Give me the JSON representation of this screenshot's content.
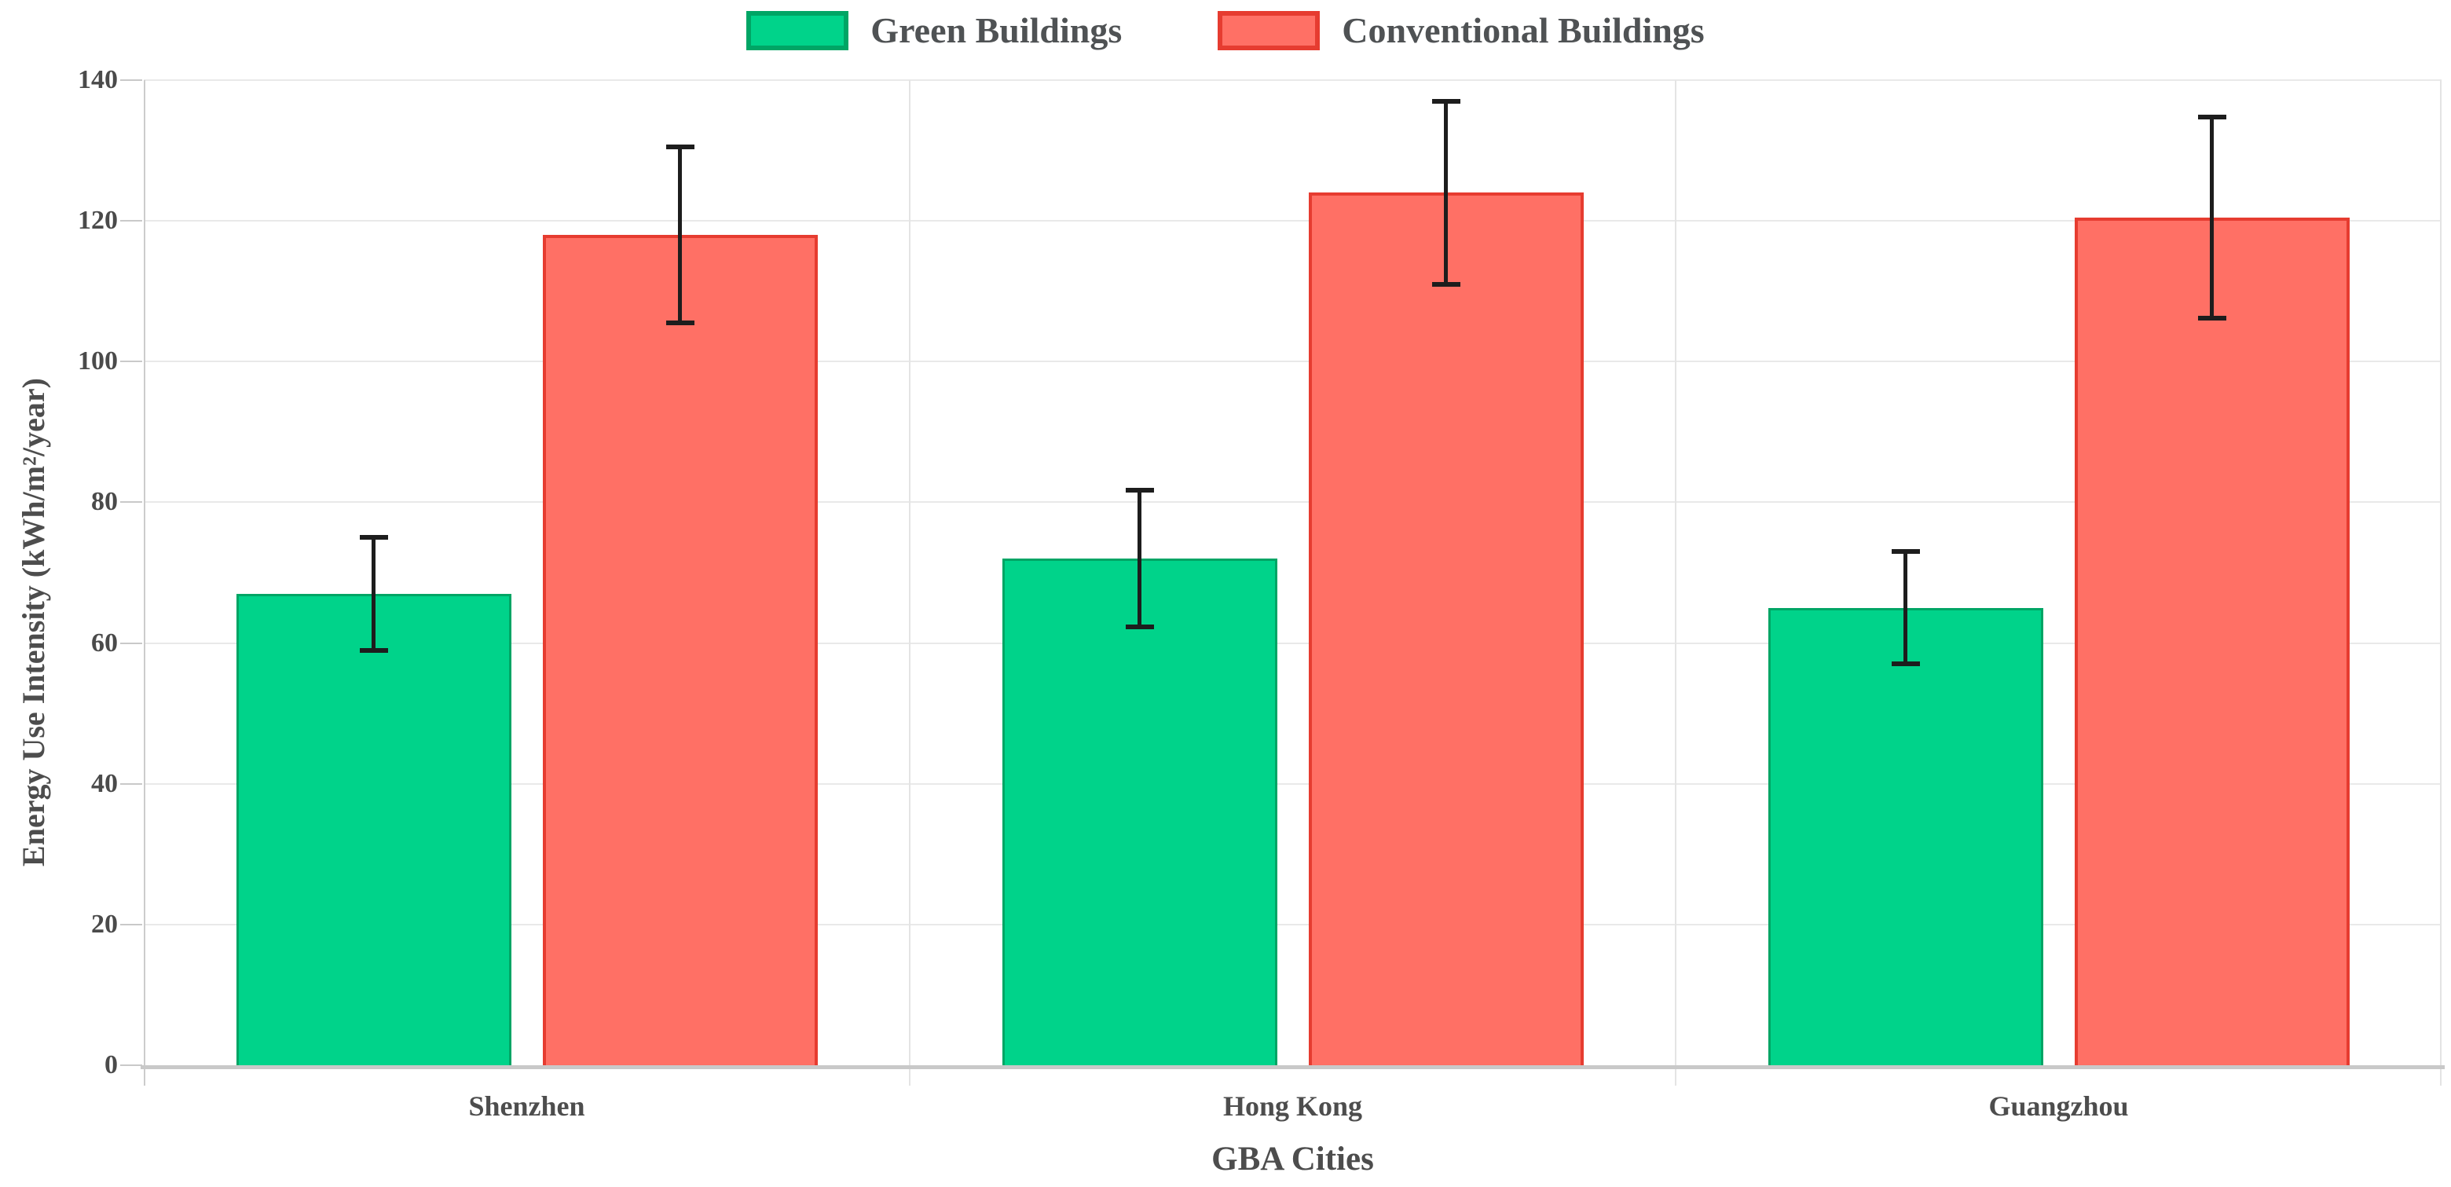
{
  "chart_data": {
    "type": "bar",
    "categories": [
      "Shenzhen",
      "Hong Kong",
      "Guangzhou"
    ],
    "series": [
      {
        "name": "Green Buildings",
        "values": [
          67,
          72,
          65
        ],
        "error": [
          8,
          9.7,
          8
        ],
        "fill": "#00d38a",
        "stroke": "#00a565"
      },
      {
        "name": "Conventional Buildings",
        "values": [
          118,
          124,
          120.5
        ],
        "error": [
          12.5,
          13,
          14.3
        ],
        "fill": "#ff7065",
        "stroke": "#e63c30"
      }
    ],
    "xlabel": "GBA Cities",
    "ylabel": "Energy Use Intensity (kWh/m²/year)",
    "ylim": [
      0,
      140
    ],
    "yticks": [
      0,
      20,
      40,
      60,
      80,
      100,
      120,
      140
    ],
    "grid": true,
    "legend_position": "top",
    "error_bar_color": "#1d1d1d",
    "background": "#ffffff"
  }
}
